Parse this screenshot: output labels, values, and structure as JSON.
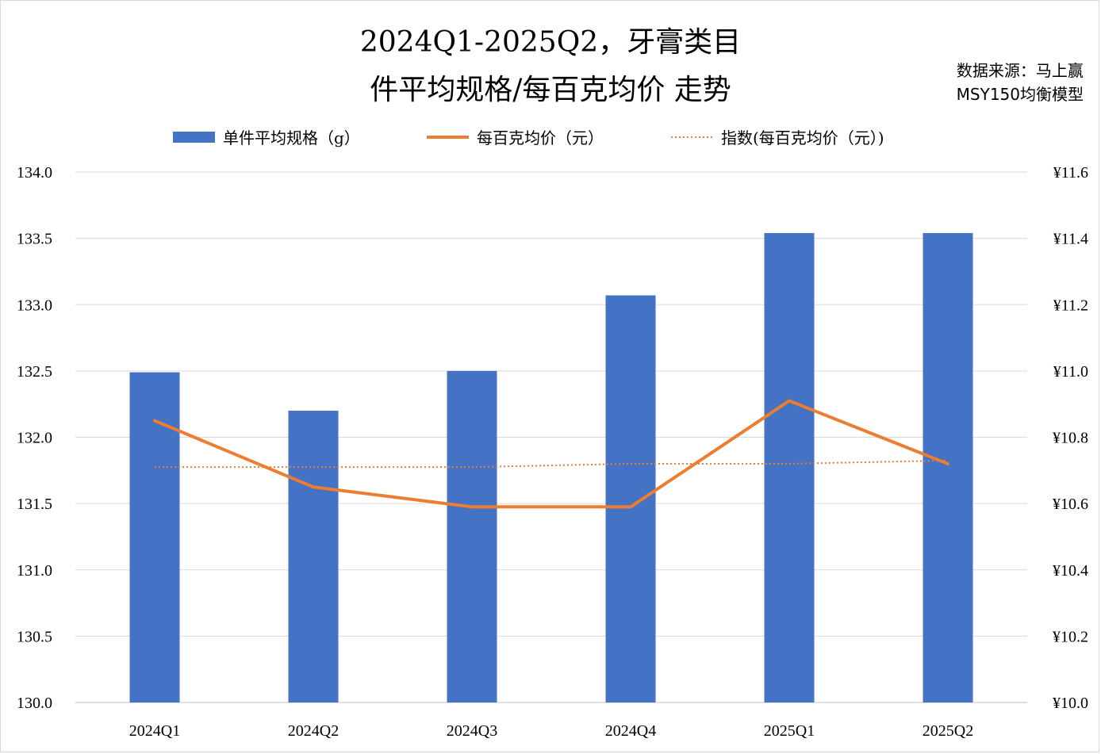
{
  "title_line1": "2024Q1-2025Q2，牙膏类目",
  "title_line2": "件平均规格/每百克均价 走势",
  "source_line1": "数据来源：马上赢",
  "source_line2": "MSY150均衡模型",
  "chart_data": {
    "type": "bar",
    "categories": [
      "2024Q1",
      "2024Q2",
      "2024Q3",
      "2024Q4",
      "2025Q1",
      "2025Q2"
    ],
    "series": [
      {
        "name": "单件平均规格（g）",
        "type": "bar",
        "axis": "left",
        "color": "#4472C4",
        "values": [
          132.49,
          132.2,
          132.5,
          133.07,
          133.54,
          133.54
        ]
      },
      {
        "name": "每百克均价（元）",
        "type": "line",
        "axis": "right",
        "color": "#ED7D31",
        "values": [
          10.85,
          10.65,
          10.59,
          10.59,
          10.91,
          10.72
        ]
      },
      {
        "name": "指数(每百克均价（元）)",
        "type": "line-dotted",
        "axis": "right",
        "color": "#ED7D31",
        "values": [
          10.71,
          10.71,
          10.71,
          10.72,
          10.72,
          10.73
        ]
      }
    ],
    "y_left": {
      "min": 130.0,
      "max": 134.0,
      "step": 0.5,
      "ticks": [
        "130.0",
        "130.5",
        "131.0",
        "131.5",
        "132.0",
        "132.5",
        "133.0",
        "133.5",
        "134.0"
      ]
    },
    "y_right": {
      "min": 10.0,
      "max": 11.6,
      "step": 0.2,
      "ticks": [
        "¥10.0",
        "¥10.2",
        "¥10.4",
        "¥10.6",
        "¥10.8",
        "¥11.0",
        "¥11.2",
        "¥11.4",
        "¥11.6"
      ]
    },
    "grid": true,
    "legend_position": "top"
  }
}
